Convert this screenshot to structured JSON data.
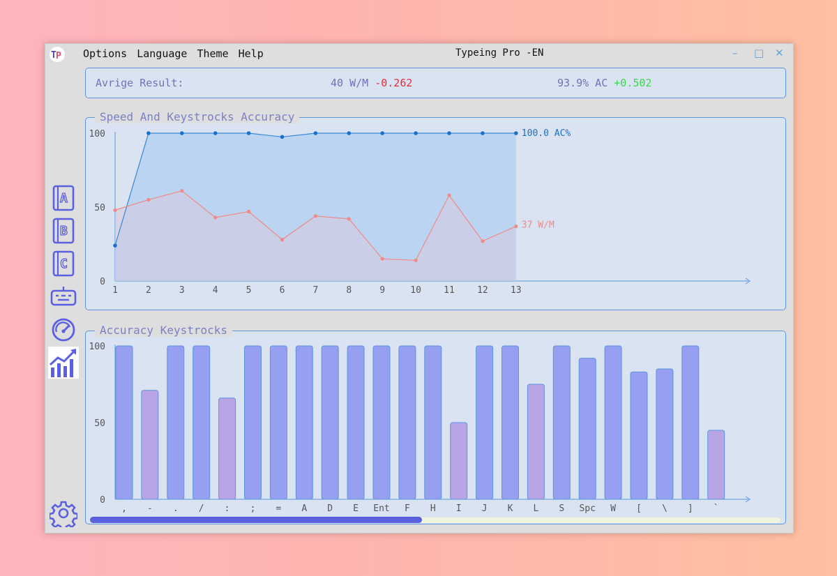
{
  "window": {
    "title": "Typeing Pro -EN",
    "menu": [
      "Options",
      "Language",
      "Theme",
      "Help"
    ],
    "controls": [
      "minimize",
      "maximize",
      "close"
    ]
  },
  "summary": {
    "label": "Avrige Result:",
    "speed": "40 W/M",
    "speed_delta": "-0.262",
    "accuracy": "93.9% AC",
    "accuracy_delta": "+0.502"
  },
  "sidebar": {
    "items": [
      {
        "name": "lesson-a",
        "icon": "book-a-icon"
      },
      {
        "name": "lesson-b",
        "icon": "book-b-icon"
      },
      {
        "name": "lesson-c",
        "icon": "book-c-icon"
      },
      {
        "name": "keyboard",
        "icon": "keyboard-icon"
      },
      {
        "name": "speedometer",
        "icon": "speedometer-icon"
      },
      {
        "name": "statistics",
        "icon": "chart-icon",
        "active": true
      }
    ],
    "settings_icon": "gear-icon"
  },
  "colors": {
    "accuracy_line": "#3a86d6",
    "speed_line": "#f08a88",
    "bar_high": "#979ff0",
    "bar_low": "#b9a5e6",
    "accent": "#5a60e0"
  },
  "chart_data": [
    {
      "type": "line",
      "title": "Speed And Keystrocks Accuracy",
      "x": [
        1,
        2,
        3,
        4,
        5,
        6,
        7,
        8,
        9,
        10,
        11,
        12,
        13
      ],
      "ylim": [
        0,
        100
      ],
      "yticks": [
        0,
        50,
        100
      ],
      "series": [
        {
          "name": "AC%",
          "values": [
            24,
            100,
            100,
            100,
            100,
            97.5,
            100,
            100,
            100,
            100,
            100,
            100,
            100
          ],
          "end_label": "100.0 AC%"
        },
        {
          "name": "W/M",
          "values": [
            48,
            55,
            61,
            43,
            47,
            28,
            44,
            42,
            15,
            14,
            58,
            27,
            37
          ],
          "end_label": "37 W/M"
        }
      ]
    },
    {
      "type": "bar",
      "title": "Accuracy Keystrocks",
      "categories": [
        ",",
        "-",
        ".",
        "/",
        ":",
        ";",
        "=",
        "A",
        "D",
        "E",
        "Ent",
        "F",
        "H",
        "I",
        "J",
        "K",
        "L",
        "S",
        "Spc",
        "W",
        "[",
        "\\",
        "]",
        "`"
      ],
      "values": [
        100,
        71,
        100,
        100,
        66,
        100,
        100,
        100,
        100,
        100,
        100,
        100,
        100,
        50,
        100,
        100,
        75,
        100,
        92,
        100,
        83,
        85,
        100,
        45
      ],
      "ylim": [
        0,
        100
      ],
      "yticks": [
        0,
        50,
        100
      ]
    }
  ],
  "scrollbar": {
    "position": 0.48
  }
}
